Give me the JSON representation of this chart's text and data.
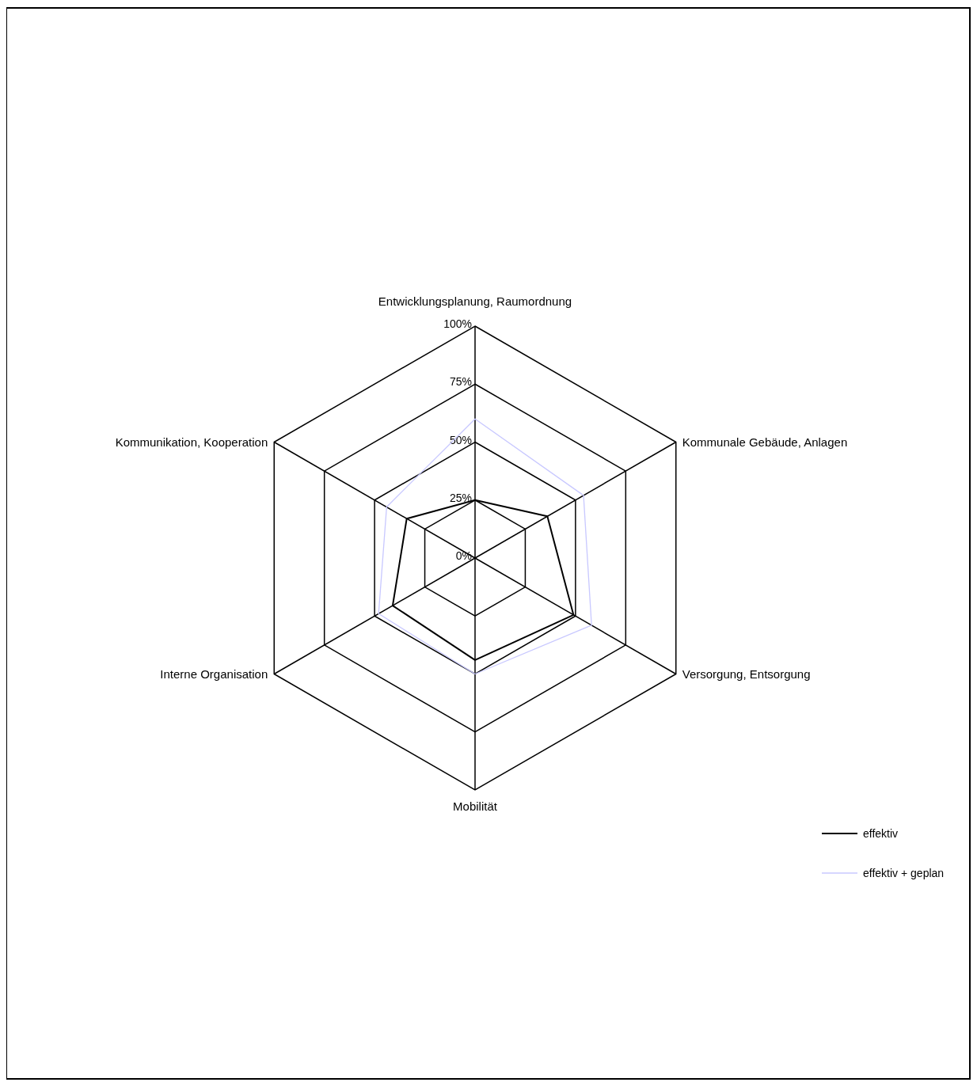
{
  "chart_data": {
    "type": "radar",
    "categories": [
      "Entwicklungsplanung, Raumordnung",
      "Kommunale Gebäude, Anlagen",
      "Versorgung, Entsorgung",
      "Mobilität",
      "Interne Organisation",
      "Kommunikation, Kooperation"
    ],
    "series": [
      {
        "name": "effektiv",
        "color": "#000000",
        "values": [
          25,
          36,
          49,
          44,
          41,
          34
        ]
      },
      {
        "name": "effektiv + geplan",
        "color": "#c8c8ff",
        "values": [
          60,
          54,
          58,
          50,
          48,
          44
        ]
      }
    ],
    "ylim": [
      0,
      100
    ],
    "yticks": [
      {
        "value": 0,
        "label": "0%"
      },
      {
        "value": 25,
        "label": "25%"
      },
      {
        "value": 50,
        "label": "50%"
      },
      {
        "value": 75,
        "label": "75%"
      },
      {
        "value": 100,
        "label": "100%"
      }
    ],
    "grid": true,
    "legend": "right"
  }
}
